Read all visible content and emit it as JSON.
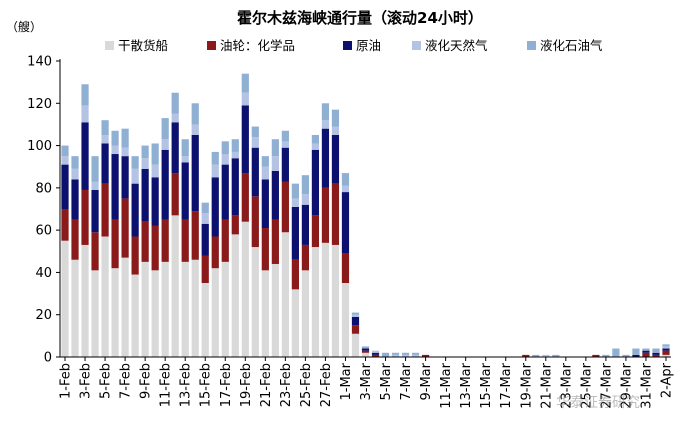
{
  "chart_data": {
    "type": "bar",
    "stacked": true,
    "title": "霍尔木兹海峡通行量（滚动24小时）",
    "unit_label": "（艘）",
    "ylim": [
      0,
      140
    ],
    "yticks": [
      0,
      20,
      40,
      60,
      80,
      100,
      120,
      140
    ],
    "grid": false,
    "legend_position": "top",
    "x_ticks": [
      "1-Feb",
      "3-Feb",
      "5-Feb",
      "7-Feb",
      "9-Feb",
      "11-Feb",
      "13-Feb",
      "15-Feb",
      "17-Feb",
      "19-Feb",
      "21-Feb",
      "23-Feb",
      "25-Feb",
      "27-Feb",
      "1-Mar",
      "3-Mar",
      "5-Mar",
      "7-Mar",
      "9-Mar",
      "11-Mar",
      "13-Mar",
      "15-Mar",
      "17-Mar",
      "19-Mar",
      "21-Mar",
      "23-Mar",
      "25-Mar",
      "27-Mar",
      "29-Mar",
      "31-Mar",
      "2-Apr"
    ],
    "categories": [
      "1-Feb",
      "2-Feb",
      "3-Feb",
      "4-Feb",
      "5-Feb",
      "6-Feb",
      "7-Feb",
      "8-Feb",
      "9-Feb",
      "10-Feb",
      "11-Feb",
      "12-Feb",
      "13-Feb",
      "14-Feb",
      "15-Feb",
      "16-Feb",
      "17-Feb",
      "18-Feb",
      "19-Feb",
      "20-Feb",
      "21-Feb",
      "22-Feb",
      "23-Feb",
      "24-Feb",
      "25-Feb",
      "26-Feb",
      "27-Feb",
      "28-Feb",
      "1-Mar",
      "2-Mar",
      "3-Mar",
      "4-Mar",
      "5-Mar",
      "6-Mar",
      "7-Mar",
      "8-Mar",
      "9-Mar",
      "10-Mar",
      "11-Mar",
      "12-Mar",
      "13-Mar",
      "14-Mar",
      "15-Mar",
      "16-Mar",
      "17-Mar",
      "18-Mar",
      "19-Mar",
      "20-Mar",
      "21-Mar",
      "22-Mar",
      "23-Mar",
      "24-Mar",
      "25-Mar",
      "26-Mar",
      "27-Mar",
      "28-Mar",
      "29-Mar",
      "30-Mar",
      "31-Mar",
      "1-Apr",
      "2-Apr"
    ],
    "series": [
      {
        "name": "干散货船",
        "color": "#d9d9d9",
        "values": [
          55,
          46,
          53,
          41,
          57,
          42,
          47,
          39,
          45,
          41,
          45,
          67,
          45,
          46,
          35,
          42,
          45,
          58,
          64,
          52,
          41,
          44,
          59,
          32,
          41,
          52,
          54,
          53,
          35,
          11,
          2,
          0,
          0,
          0,
          0,
          0,
          0,
          0,
          0,
          0,
          0,
          0,
          0,
          0,
          0,
          0,
          0,
          0,
          0,
          0,
          0,
          0,
          0,
          0,
          0,
          0,
          0,
          0,
          0,
          0,
          1
        ]
      },
      {
        "name": "油轮：化学品",
        "color": "#8b1a1a",
        "values": [
          15,
          19,
          26,
          18,
          25,
          23,
          28,
          18,
          19,
          21,
          20,
          20,
          20,
          23,
          13,
          15,
          20,
          9,
          23,
          24,
          20,
          21,
          24,
          14,
          12,
          15,
          26,
          29,
          14,
          4,
          1,
          1,
          0,
          0,
          0,
          0,
          1,
          0,
          0,
          0,
          0,
          0,
          0,
          0,
          0,
          0,
          1,
          0,
          0,
          0,
          0,
          0,
          0,
          1,
          0,
          0,
          0,
          0,
          2,
          1,
          2
        ]
      },
      {
        "name": "原油",
        "color": "#0c1170",
        "values": [
          21,
          19,
          32,
          20,
          19,
          31,
          20,
          25,
          25,
          23,
          33,
          24,
          27,
          36,
          15,
          28,
          26,
          27,
          32,
          23,
          23,
          23,
          16,
          25,
          19,
          31,
          28,
          23,
          29,
          4,
          1,
          1,
          0,
          0,
          0,
          0,
          0,
          0,
          0,
          0,
          0,
          0,
          0,
          0,
          0,
          0,
          0,
          0,
          0,
          0,
          0,
          0,
          0,
          0,
          0,
          0,
          0,
          1,
          1,
          1,
          1
        ]
      },
      {
        "name": "液化天然气",
        "color": "#b4c2e3",
        "values": [
          4,
          5,
          8,
          4,
          4,
          4,
          4,
          7,
          5,
          6,
          5,
          4,
          3,
          5,
          5,
          6,
          5,
          3,
          6,
          5,
          6,
          7,
          3,
          4,
          5,
          3,
          4,
          4,
          3,
          1,
          0,
          1,
          0,
          1,
          1,
          1,
          0,
          0,
          0,
          0,
          0,
          0,
          0,
          0,
          0,
          0,
          0,
          0,
          1,
          0,
          0,
          0,
          0,
          0,
          0,
          0,
          0,
          0,
          0,
          0,
          1
        ]
      },
      {
        "name": "液化石油气",
        "color": "#8fb0d3",
        "values": [
          5,
          6,
          10,
          12,
          7,
          7,
          9,
          6,
          6,
          10,
          10,
          10,
          8,
          10,
          5,
          6,
          6,
          6,
          9,
          5,
          5,
          8,
          5,
          7,
          9,
          4,
          8,
          8,
          6,
          1,
          1,
          0,
          2,
          1,
          1,
          1,
          0,
          0,
          0,
          0,
          0,
          0,
          0,
          0,
          0,
          0,
          0,
          1,
          0,
          1,
          0,
          0,
          0,
          0,
          1,
          4,
          1,
          3,
          1,
          2,
          1
        ]
      }
    ]
  },
  "watermark": "华泰证券研究"
}
